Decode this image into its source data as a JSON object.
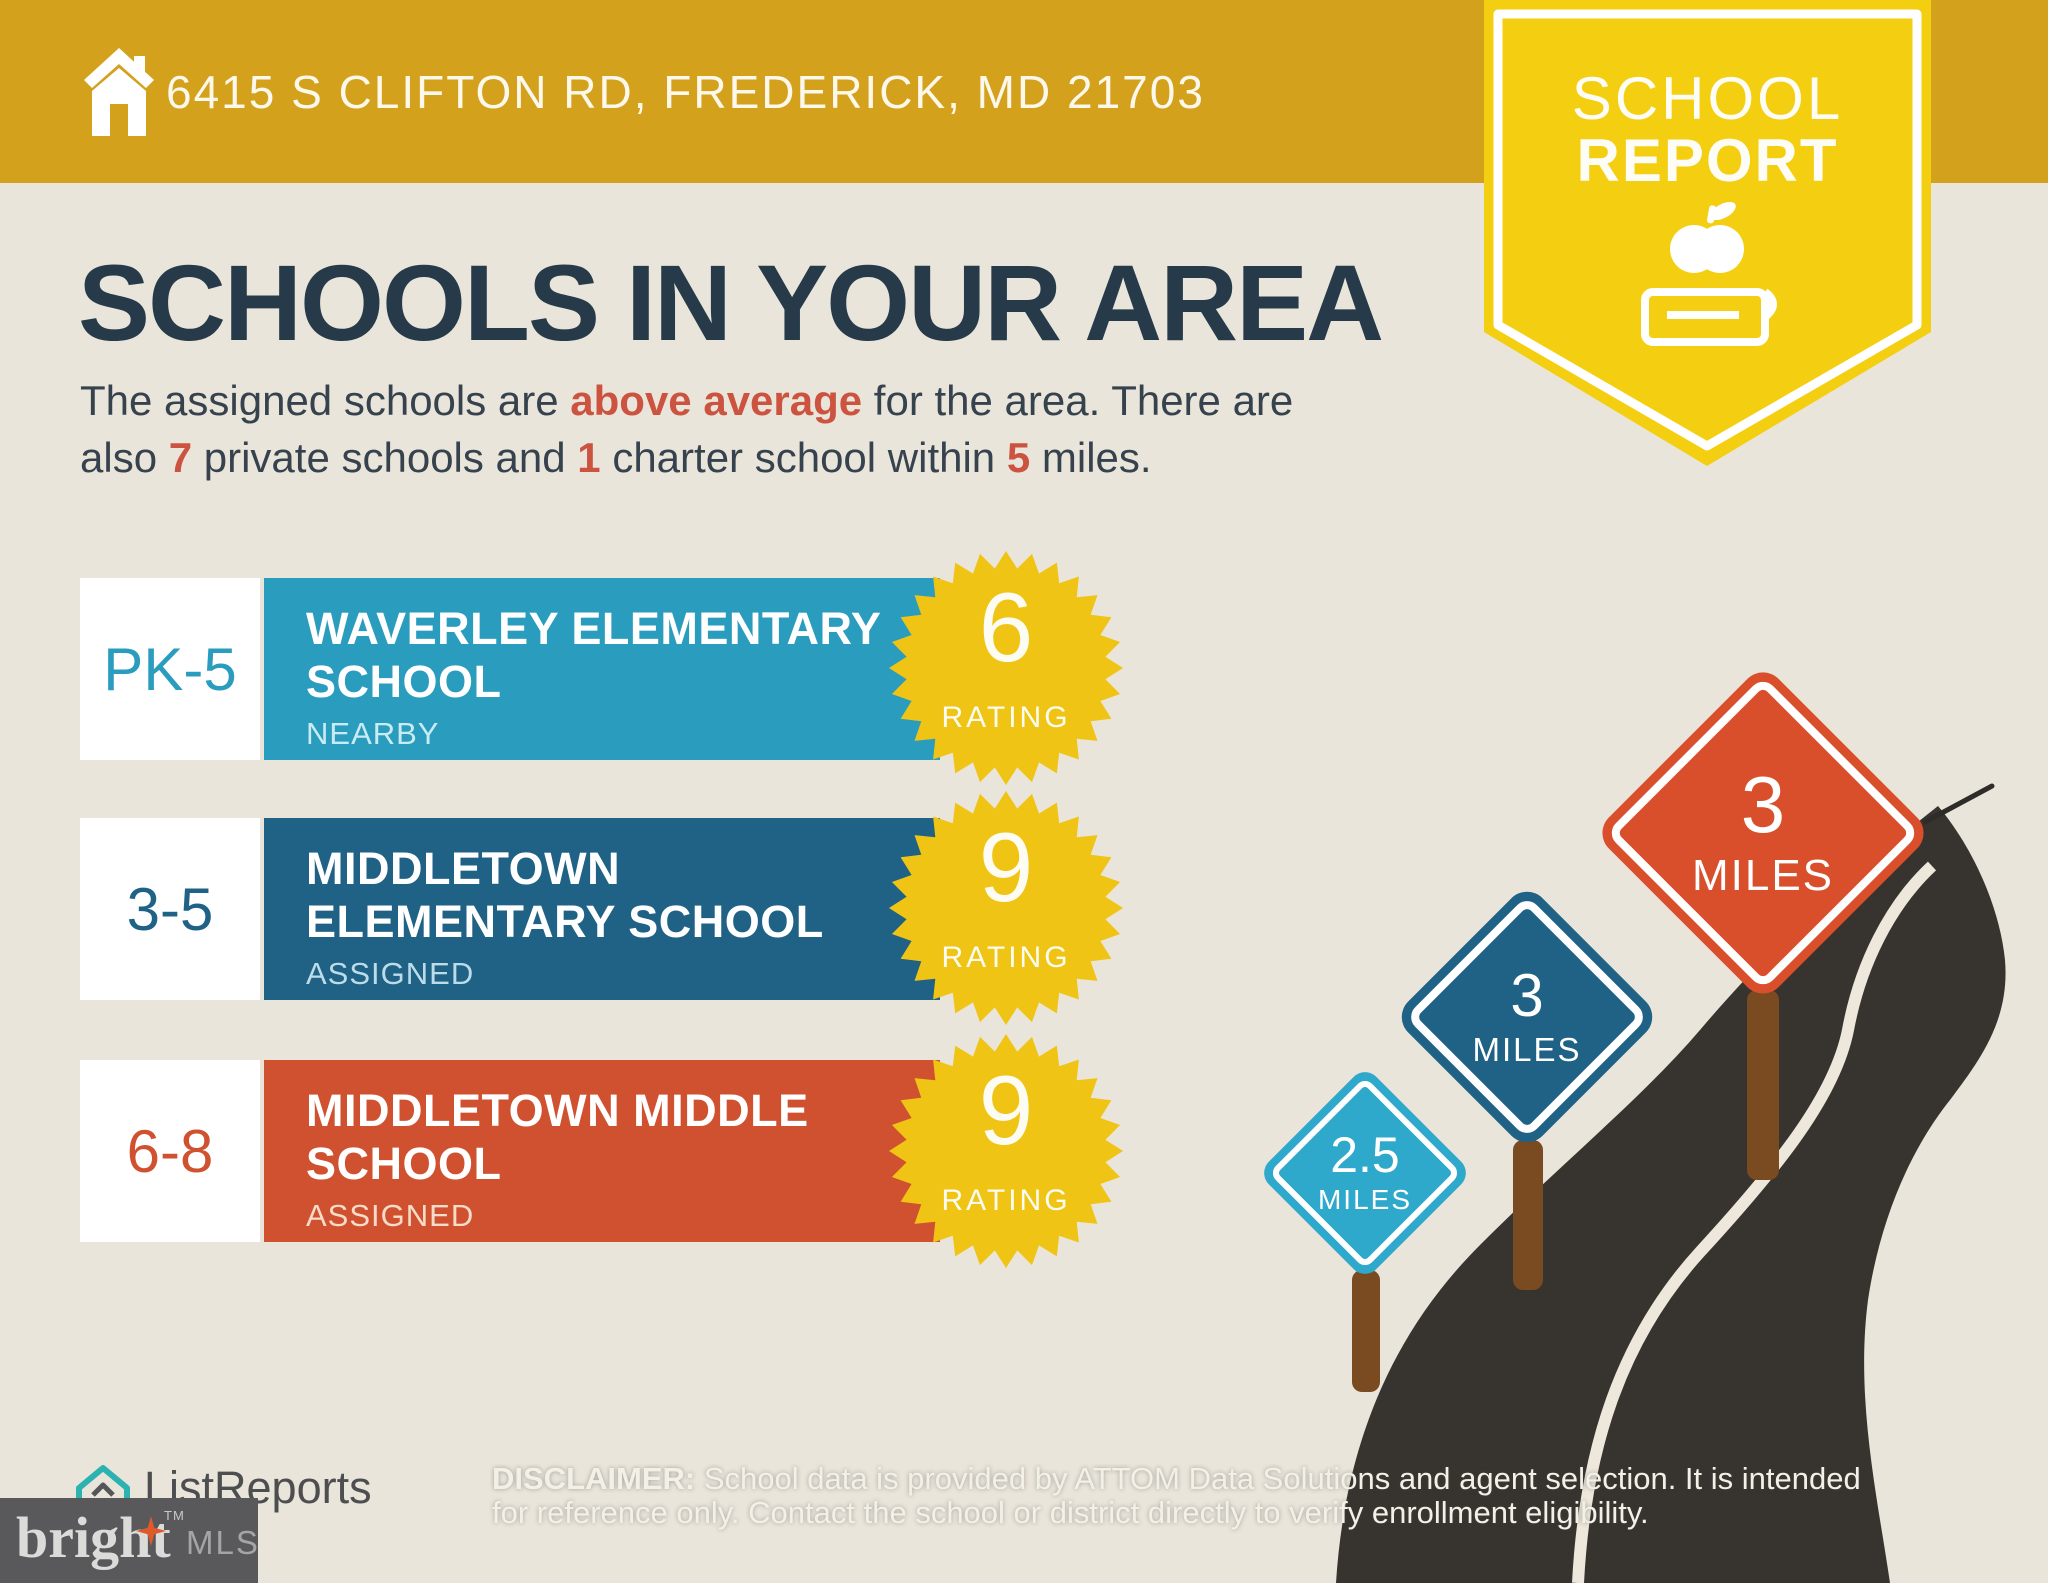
{
  "header": {
    "address": "6415 S CLIFTON RD, FREDERICK, MD 21703"
  },
  "ribbon": {
    "word1": "SCHOOL",
    "word2": "REPORT"
  },
  "main": {
    "title": "SCHOOLS IN YOUR AREA",
    "intro": {
      "seg1": "The assigned schools are ",
      "hl1": "above average",
      "seg2": " for the area. There are also ",
      "hl2": "7",
      "seg3": " private schools and ",
      "hl3": "1",
      "seg4": " charter school within ",
      "hl4": "5",
      "seg5": " miles."
    }
  },
  "schools": [
    {
      "grades": "PK-5",
      "name_line1": "WAVERLEY ELEMENTARY",
      "name_line2": "SCHOOL",
      "tag": "NEARBY",
      "rating": "6",
      "rating_label": "RATING",
      "accent": "#2A9CBD",
      "tag_color": "#C9ECF4"
    },
    {
      "grades": "3-5",
      "name_line1": "MIDDLETOWN",
      "name_line2": "ELEMENTARY SCHOOL",
      "tag": "ASSIGNED",
      "rating": "9",
      "rating_label": "RATING",
      "accent": "#1F6285",
      "tag_color": "#BCDCE9"
    },
    {
      "grades": "6-8",
      "name_line1": "MIDDLETOWN MIDDLE",
      "name_line2": "SCHOOL",
      "tag": "ASSIGNED",
      "rating": "9",
      "rating_label": "RATING",
      "accent": "#D0512F",
      "tag_color": "#F6DCC9"
    }
  ],
  "road_signs": [
    {
      "distance": "2.5",
      "unit": "MILES",
      "color": "#2FA9CB"
    },
    {
      "distance": "3",
      "unit": "MILES",
      "color": "#1F6285"
    },
    {
      "distance": "3",
      "unit": "MILES",
      "color": "#D94F2B"
    }
  ],
  "badge_color": "#F0C414",
  "footer": {
    "listreports_label": "ListReports",
    "bright_label": "bright",
    "bright_tm": "TM",
    "mls_label": "MLS",
    "disclaimer_bold": "DISCLAIMER:",
    "disclaimer_line1": " School data is provided by ATTOM Data Solutions and agent selection. It is intended",
    "disclaimer_line2": "for reference only. Contact the school or district directly to verify enrollment eligibility."
  }
}
